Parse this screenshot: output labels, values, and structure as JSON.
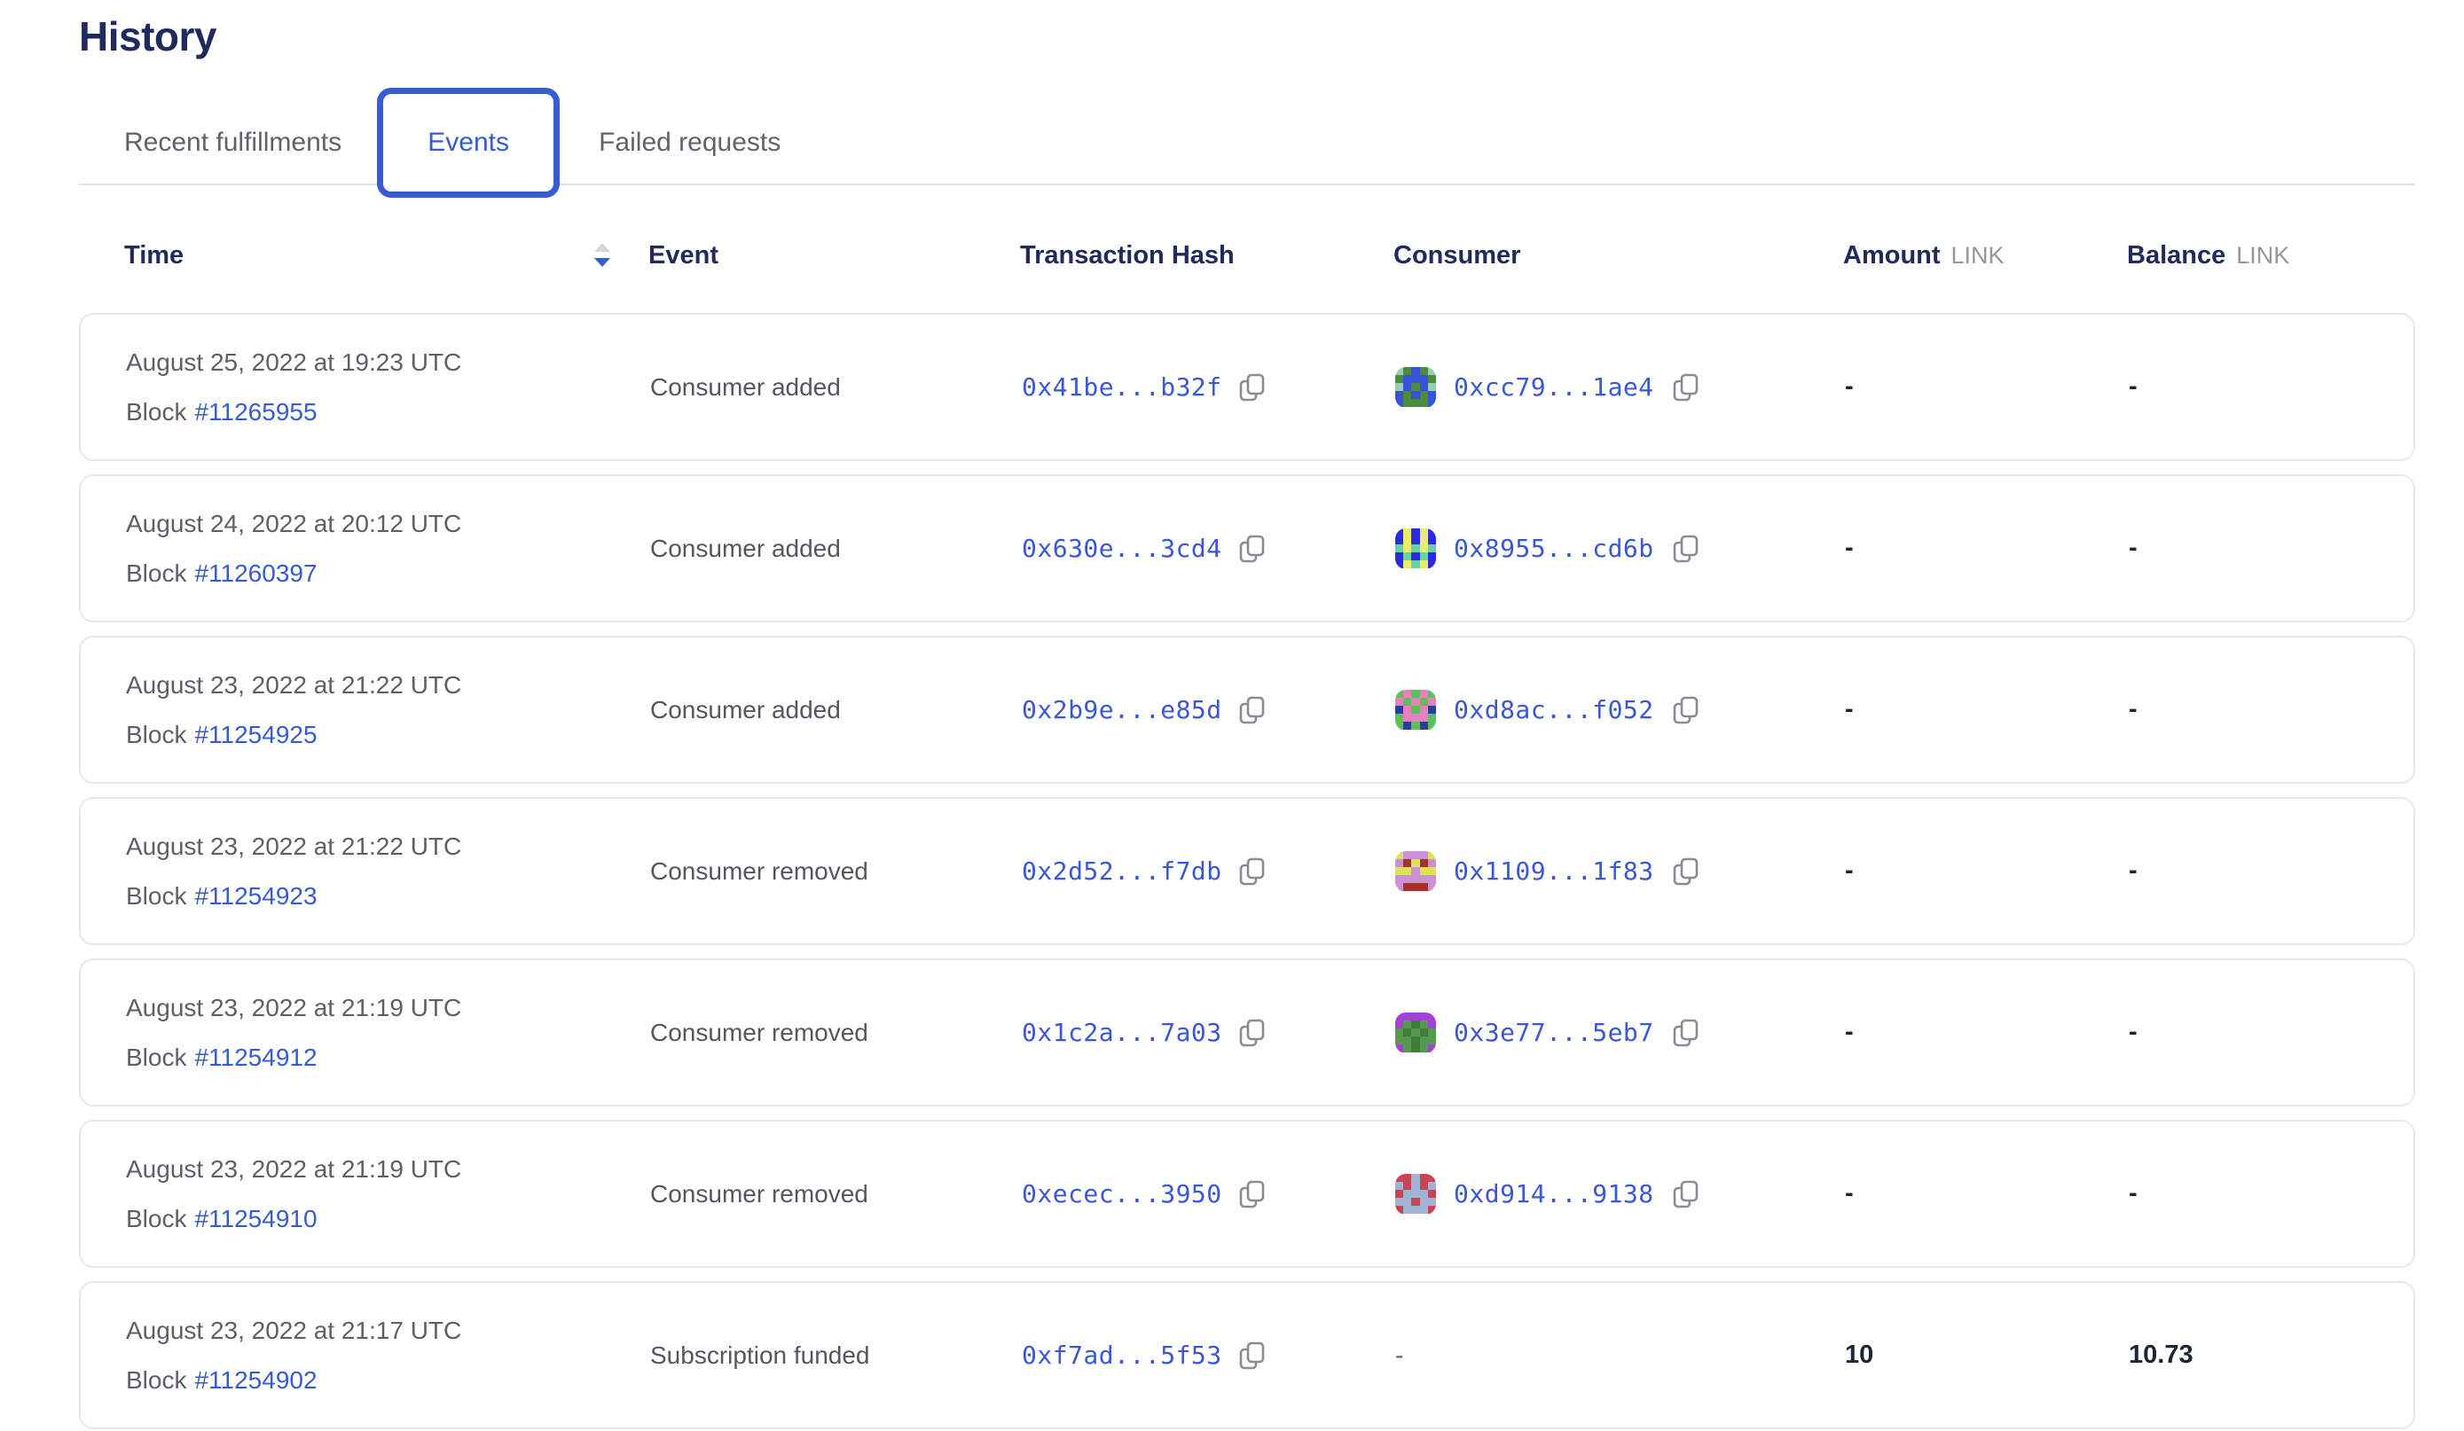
{
  "page": {
    "title": "History"
  },
  "tabs": {
    "items": [
      {
        "label": "Recent fulfillments",
        "active": false
      },
      {
        "label": "Events",
        "active": true
      },
      {
        "label": "Failed requests",
        "active": false
      }
    ]
  },
  "table": {
    "headers": {
      "time": "Time",
      "event": "Event",
      "tx_hash": "Transaction Hash",
      "consumer": "Consumer",
      "amount": "Amount",
      "balance": "Balance",
      "link_unit": "LINK",
      "time_sort_state": "descending"
    },
    "rows": [
      {
        "time": "August 25, 2022 at 19:23 UTC",
        "block_label": "Block",
        "block_number": "#11265955",
        "event": "Consumer added",
        "tx_hash": "0x41be...b32f",
        "consumer": "0xcc79...1ae4",
        "amount": "-",
        "balance": "-",
        "avatar": {
          "palette": {
            "g": "#4a8c3c",
            "b": "#3950d8",
            "t": "#96cfae"
          },
          "pixels": [
            "tgbgt",
            "gbbbg",
            "tbgbt",
            "bgbgb",
            "bgggb"
          ]
        }
      },
      {
        "time": "August 24, 2022 at 20:12 UTC",
        "block_label": "Block",
        "block_number": "#11260397",
        "event": "Consumer added",
        "tx_hash": "0x630e...3cd4",
        "consumer": "0x8955...cd6b",
        "amount": "-",
        "balance": "-",
        "avatar": {
          "palette": {
            "b": "#2a2ae2",
            "y": "#e9ec6d",
            "t": "#66d3a2"
          },
          "pixels": [
            "bybyb",
            "bybyb",
            "tytyt",
            "btbtb",
            "bytyb"
          ]
        }
      },
      {
        "time": "August 23, 2022 at 21:22 UTC",
        "block_label": "Block",
        "block_number": "#11254925",
        "event": "Consumer added",
        "tx_hash": "0x2b9e...e85d",
        "consumer": "0xd8ac...f052",
        "amount": "-",
        "balance": "-",
        "avatar": {
          "palette": {
            "g": "#5dbf57",
            "p": "#e77fc1",
            "n": "#2c3c9c"
          },
          "pixels": [
            "gpgpg",
            "pgpgp",
            "npgpn",
            "gpppg",
            "gngng"
          ]
        }
      },
      {
        "time": "August 23, 2022 at 21:22 UTC",
        "block_label": "Block",
        "block_number": "#11254923",
        "event": "Consumer removed",
        "tx_hash": "0x2d52...f7db",
        "consumer": "0x1109...1f83",
        "amount": "-",
        "balance": "-",
        "avatar": {
          "palette": {
            "p": "#c891d8",
            "y": "#dfe05e",
            "r": "#a33228"
          },
          "pixels": [
            "ypppy",
            "pryrp",
            "yypyy",
            "ppppp",
            "prrrp"
          ]
        }
      },
      {
        "time": "August 23, 2022 at 21:19 UTC",
        "block_label": "Block",
        "block_number": "#11254912",
        "event": "Consumer removed",
        "tx_hash": "0x1c2a...7a03",
        "consumer": "0x3e77...5eb7",
        "amount": "-",
        "balance": "-",
        "avatar": {
          "palette": {
            "g": "#56994e",
            "d": "#3f7d3a",
            "p": "#a43fd9"
          },
          "pixels": [
            "ppppp",
            "pgdgp",
            "gdgdg",
            "ggdgg",
            "pgdgp"
          ]
        }
      },
      {
        "time": "August 23, 2022 at 21:19 UTC",
        "block_label": "Block",
        "block_number": "#11254910",
        "event": "Consumer removed",
        "tx_hash": "0xecec...3950",
        "consumer": "0xd914...9138",
        "amount": "-",
        "balance": "-",
        "avatar": {
          "palette": {
            "r": "#c64752",
            "s": "#9fb3d6"
          },
          "pixels": [
            "rrsrr",
            "srsrs",
            "rsssr",
            "ssrss",
            "rsssr"
          ]
        }
      },
      {
        "time": "August 23, 2022 at 21:17 UTC",
        "block_label": "Block",
        "block_number": "#11254902",
        "event": "Subscription funded",
        "tx_hash": "0xf7ad...5f53",
        "consumer": "-",
        "amount": "10",
        "balance": "10.73"
      }
    ]
  },
  "colors": {
    "accent_blue": "#375bd2",
    "heading_navy": "#1f2a5e",
    "text_gray": "#5d6067",
    "unit_gray": "#94979f",
    "value_dark": "#1e2438",
    "card_border": "#e8e9ed"
  }
}
